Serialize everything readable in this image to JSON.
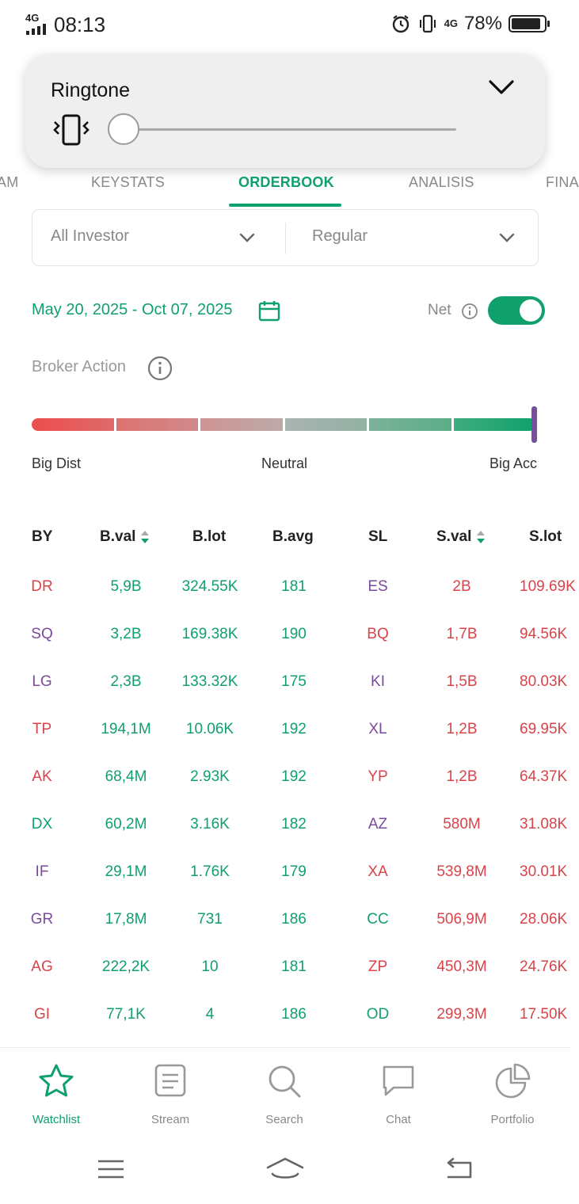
{
  "status_bar": {
    "network": "4G",
    "time": "08:13",
    "data_network": "4G",
    "battery": "78%",
    "icons": [
      "signal-icon",
      "alarm-icon",
      "vibrate-icon",
      "data-arrows-icon",
      "battery-icon"
    ]
  },
  "volume_panel": {
    "title": "Ringtone",
    "mode_icon": "vibrate-icon",
    "level": 0.0
  },
  "tabs": {
    "items": [
      "AM",
      "KEYSTATS",
      "ORDERBOOK",
      "ANALISIS",
      "FINA"
    ],
    "active": "ORDERBOOK"
  },
  "filters": {
    "investor": "All Investor",
    "market": "Regular"
  },
  "date_range": "May 20, 2025 - Oct 07, 2025",
  "net": {
    "label": "Net",
    "enabled": true
  },
  "broker_action": {
    "label": "Broker Action",
    "scale_left": "Big Dist",
    "scale_mid": "Neutral",
    "scale_right": "Big Acc",
    "level": 1.0
  },
  "table": {
    "headers": {
      "by": "BY",
      "bval": "B.val",
      "blot": "B.lot",
      "bavg": "B.avg",
      "sl": "SL",
      "sval": "S.val",
      "slot": "S.lot"
    },
    "rows": [
      {
        "by": "DR",
        "by_color": "red",
        "bval": "5,9B",
        "blot": "324.55K",
        "bavg": "181",
        "sl": "ES",
        "sl_color": "purple",
        "sval": "2B",
        "slot": "109.69K"
      },
      {
        "by": "SQ",
        "by_color": "purple",
        "bval": "3,2B",
        "blot": "169.38K",
        "bavg": "190",
        "sl": "BQ",
        "sl_color": "red",
        "sval": "1,7B",
        "slot": "94.56K"
      },
      {
        "by": "LG",
        "by_color": "purple",
        "bval": "2,3B",
        "blot": "133.32K",
        "bavg": "175",
        "sl": "KI",
        "sl_color": "purple",
        "sval": "1,5B",
        "slot": "80.03K"
      },
      {
        "by": "TP",
        "by_color": "red",
        "bval": "194,1M",
        "blot": "10.06K",
        "bavg": "192",
        "sl": "XL",
        "sl_color": "purple",
        "sval": "1,2B",
        "slot": "69.95K"
      },
      {
        "by": "AK",
        "by_color": "red",
        "bval": "68,4M",
        "blot": "2.93K",
        "bavg": "192",
        "sl": "YP",
        "sl_color": "red",
        "sval": "1,2B",
        "slot": "64.37K"
      },
      {
        "by": "DX",
        "by_color": "green",
        "bval": "60,2M",
        "blot": "3.16K",
        "bavg": "182",
        "sl": "AZ",
        "sl_color": "purple",
        "sval": "580M",
        "slot": "31.08K"
      },
      {
        "by": "IF",
        "by_color": "purple",
        "bval": "29,1M",
        "blot": "1.76K",
        "bavg": "179",
        "sl": "XA",
        "sl_color": "red",
        "sval": "539,8M",
        "slot": "30.01K"
      },
      {
        "by": "GR",
        "by_color": "purple",
        "bval": "17,8M",
        "blot": "731",
        "bavg": "186",
        "sl": "CC",
        "sl_color": "green",
        "sval": "506,9M",
        "slot": "28.06K"
      },
      {
        "by": "AG",
        "by_color": "red",
        "bval": "222,2K",
        "blot": "10",
        "bavg": "181",
        "sl": "ZP",
        "sl_color": "red",
        "sval": "450,3M",
        "slot": "24.76K"
      },
      {
        "by": "GI",
        "by_color": "red",
        "bval": "77,1K",
        "blot": "4",
        "bavg": "186",
        "sl": "OD",
        "sl_color": "green",
        "sval": "299,3M",
        "slot": "17.50K"
      }
    ]
  },
  "bottom_nav": {
    "items": [
      {
        "label": "Watchlist",
        "icon": "star-icon",
        "active": true
      },
      {
        "label": "Stream",
        "icon": "stream-icon",
        "active": false
      },
      {
        "label": "Search",
        "icon": "search-icon",
        "active": false
      },
      {
        "label": "Chat",
        "icon": "chat-icon",
        "active": false
      },
      {
        "label": "Portfolio",
        "icon": "pie-chart-icon",
        "active": false
      }
    ]
  },
  "colors": {
    "accent": "#10a06c",
    "buy_red": "#d9434a",
    "purple": "#7b4b9b"
  }
}
